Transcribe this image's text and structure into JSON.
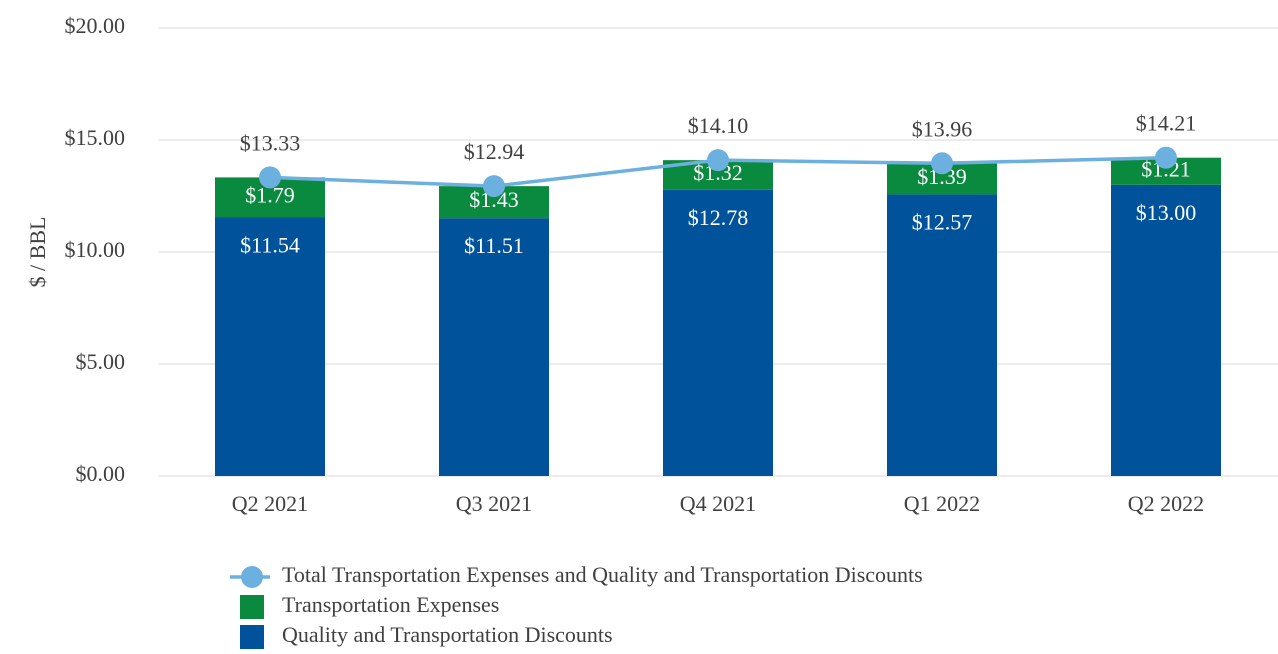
{
  "chart_data": {
    "type": "bar",
    "stacked": true,
    "y_label": "$ / BBL",
    "categories": [
      "Q2 2021",
      "Q3 2021",
      "Q4 2021",
      "Q1 2022",
      "Q2 2022"
    ],
    "series": [
      {
        "name": "Quality and Transportation Discounts",
        "type": "bar",
        "color": "#00529b",
        "values": [
          11.54,
          11.51,
          12.78,
          12.57,
          13.0
        ],
        "value_labels": [
          "$11.54",
          "$11.51",
          "$12.78",
          "$12.57",
          "$13.00"
        ]
      },
      {
        "name": "Transportation Expenses",
        "type": "bar",
        "color": "#0a8a3e",
        "values": [
          1.79,
          1.43,
          1.32,
          1.39,
          1.21
        ],
        "value_labels": [
          "$1.79",
          "$1.43",
          "$1.32",
          "$1.39",
          "$1.21"
        ]
      },
      {
        "name": "Total Transportation Expenses and Quality and Transportation Discounts",
        "type": "line",
        "color": "#6cb0e0",
        "values": [
          13.33,
          12.94,
          14.1,
          13.96,
          14.21
        ],
        "value_labels": [
          "$13.33",
          "$12.94",
          "$14.10",
          "$13.96",
          "$14.21"
        ]
      }
    ],
    "ylim": [
      0,
      20
    ],
    "yticks": [
      {
        "value": 0,
        "label": "$0.00"
      },
      {
        "value": 5,
        "label": "$5.00"
      },
      {
        "value": 10,
        "label": "$10.00"
      },
      {
        "value": 15,
        "label": "$15.00"
      },
      {
        "value": 20,
        "label": "$20.00"
      }
    ],
    "grid": true,
    "legend": "bottom"
  }
}
